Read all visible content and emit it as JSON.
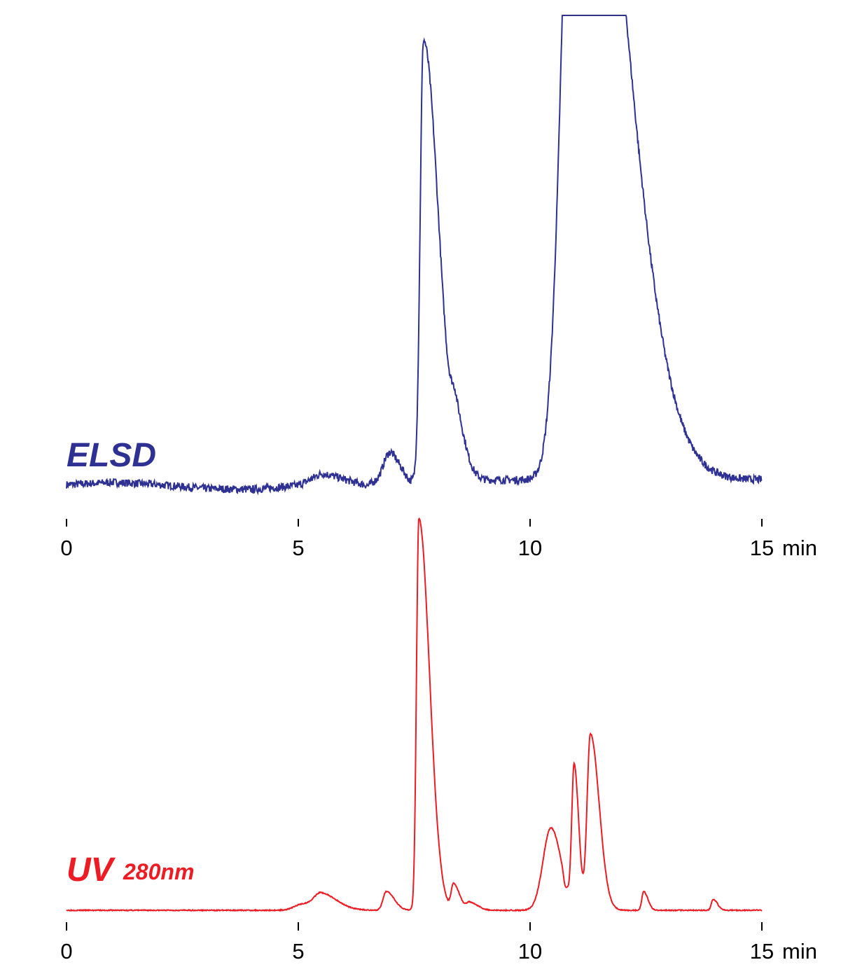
{
  "colors": {
    "elsd": "#2e3192",
    "uv": "#ed1c24",
    "axis": "#000000"
  },
  "chart_data": [
    {
      "type": "line",
      "title": "",
      "xlabel": "",
      "ylabel": "",
      "trace_label": "ELSD",
      "trace_label_sub": "",
      "unit": "min",
      "xlim": [
        0,
        15
      ],
      "x_ticks": [
        0,
        5,
        10,
        15
      ],
      "tick_labels": [
        "0",
        "5",
        "10",
        "15"
      ],
      "ylim": [
        0,
        100
      ],
      "peaks_note_clipped": true,
      "baseline": [
        [
          0,
          2.0
        ],
        [
          1,
          2.5
        ],
        [
          2,
          2.0
        ],
        [
          3,
          1.2
        ],
        [
          4,
          1.0
        ],
        [
          5,
          1.8
        ],
        [
          5.5,
          2.8
        ],
        [
          6,
          2.0
        ],
        [
          6.5,
          1.5
        ],
        [
          7.0,
          4.8
        ],
        [
          7.4,
          2.0
        ],
        [
          7.6,
          3.0
        ]
      ],
      "peaks": [
        {
          "rt": 5.55,
          "height": 1.5,
          "width": 0.25,
          "tail": 0.3
        },
        {
          "rt": 6.95,
          "height": 4.0,
          "width": 0.11,
          "tail": 0.15
        },
        {
          "rt": 7.7,
          "height": 91.0,
          "width": 0.07,
          "tail": 0.25
        },
        {
          "rt": 8.4,
          "height": 9.5,
          "width": 0.09,
          "tail": 0.12
        },
        {
          "rt": 11.0,
          "height": 175.0,
          "width": 0.28,
          "tail": 0.7
        }
      ],
      "noise": 0.8
    },
    {
      "type": "line",
      "title": "",
      "xlabel": "",
      "ylabel": "",
      "trace_label": "UV",
      "trace_label_sub": "280nm",
      "unit": "min",
      "xlim": [
        0,
        15
      ],
      "x_ticks": [
        0,
        5,
        10,
        15
      ],
      "tick_labels": [
        "0",
        "5",
        "10",
        "15"
      ],
      "ylim": [
        0,
        100
      ],
      "peaks": [
        {
          "rt": 5.1,
          "height": 1.6,
          "width": 0.18,
          "tail": 0.2
        },
        {
          "rt": 5.5,
          "height": 3.6,
          "width": 0.15,
          "tail": 0.2
        },
        {
          "rt": 6.9,
          "height": 4.8,
          "width": 0.07,
          "tail": 0.1
        },
        {
          "rt": 7.6,
          "height": 100.0,
          "width": 0.05,
          "tail": 0.18
        },
        {
          "rt": 8.35,
          "height": 6.5,
          "width": 0.05,
          "tail": 0.08
        },
        {
          "rt": 8.7,
          "height": 2.0,
          "width": 0.07,
          "tail": 0.1
        },
        {
          "rt": 10.45,
          "height": 21.0,
          "width": 0.17,
          "tail": 0.05
        },
        {
          "rt": 10.95,
          "height": 36.0,
          "width": 0.05,
          "tail": 0.05
        },
        {
          "rt": 11.3,
          "height": 45.0,
          "width": 0.07,
          "tail": 0.12
        },
        {
          "rt": 12.45,
          "height": 4.8,
          "width": 0.04,
          "tail": 0.05
        },
        {
          "rt": 13.95,
          "height": 2.8,
          "width": 0.04,
          "tail": 0.05
        }
      ],
      "dips": [
        {
          "rt": 10.75,
          "depth": 1.8,
          "width": 0.03
        }
      ],
      "noise": 0.12
    }
  ]
}
